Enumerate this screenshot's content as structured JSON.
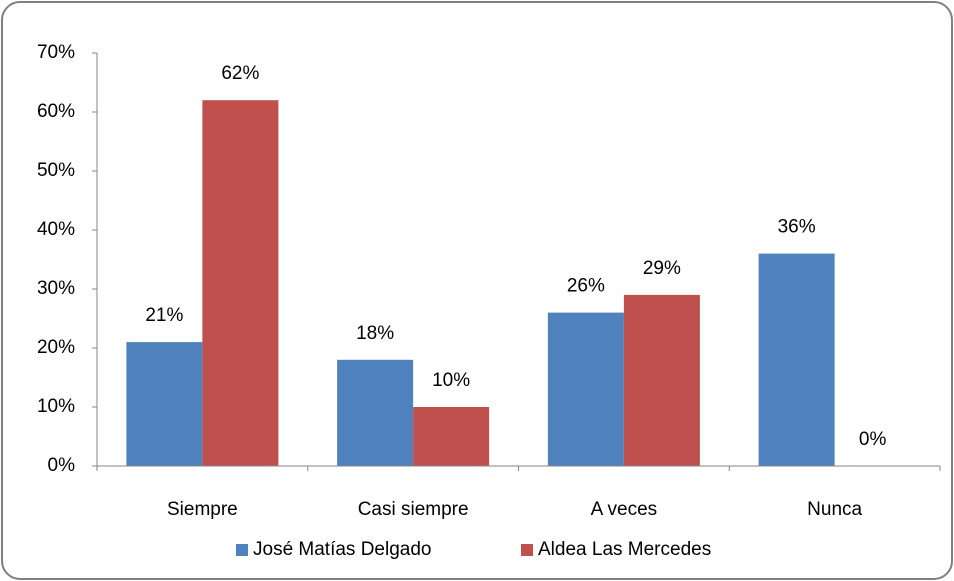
{
  "chart_data": {
    "type": "bar",
    "categories": [
      "Siempre",
      "Casi siempre",
      "A veces",
      "Nunca"
    ],
    "series": [
      {
        "name": "José Matías Delgado",
        "color": "#4f81bd",
        "values": [
          21,
          18,
          26,
          36
        ],
        "value_labels": [
          "21%",
          "18%",
          "26%",
          "36%"
        ]
      },
      {
        "name": "Aldea Las Mercedes",
        "color": "#c0504d",
        "values": [
          62,
          10,
          29,
          0
        ],
        "value_labels": [
          "62%",
          "10%",
          "29%",
          "0%"
        ]
      }
    ],
    "ylim": [
      0,
      70
    ],
    "yticks": [
      {
        "value": 0,
        "label": "0%"
      },
      {
        "value": 10,
        "label": "10%"
      },
      {
        "value": 20,
        "label": "20%"
      },
      {
        "value": 30,
        "label": "30%"
      },
      {
        "value": 40,
        "label": "40%"
      },
      {
        "value": 50,
        "label": "50%"
      },
      {
        "value": 60,
        "label": "60%"
      },
      {
        "value": 70,
        "label": "70%"
      }
    ],
    "grid": false,
    "legend": "bottom"
  }
}
